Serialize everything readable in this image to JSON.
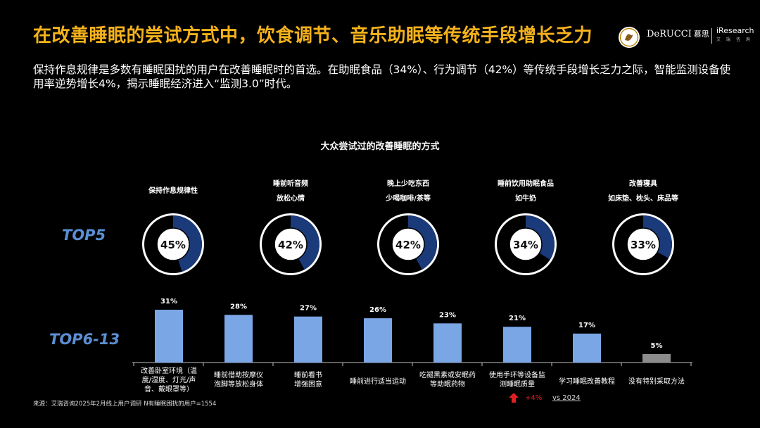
{
  "header": {
    "title": "在改善睡眠的尝试方式中，饮食调节、音乐助眠等传统手段增长乏力",
    "subtitle": "保持作息规律是多数有睡眠困扰的用户在改善睡眠时的首选。在助眠食品（34%）、行为调节（42%）等传统手段增长乏力之际，智能监测设备使用率逆势增长4%，揭示睡眠经济进入“监测3.0”时代。",
    "brand_derucci": "DeRUCCI",
    "brand_derucci_zh": "慕思",
    "brand_iresearch": "iResearch",
    "brand_iresearch_zh": "艾 瑞 咨 询"
  },
  "labels": {
    "top5": "TOP5",
    "top6_13": "TOP6-13"
  },
  "chart_data": [
    {
      "type": "pie",
      "title": "大众尝试过的改善睡眠的方式",
      "group": "TOP5",
      "items": [
        {
          "label_line1": "保持作息规律性",
          "label_line2": "",
          "value": 45,
          "display": "45%"
        },
        {
          "label_line1": "睡前听音频",
          "label_line2": "放松心情",
          "value": 42,
          "display": "42%"
        },
        {
          "label_line1": "晚上少吃东西",
          "label_line2": "少喝咖啡/茶等",
          "value": 42,
          "display": "42%"
        },
        {
          "label_line1": "睡前饮用助眠食品",
          "label_line2": "如牛奶",
          "value": 34,
          "display": "34%"
        },
        {
          "label_line1": "改善寝具",
          "label_line2": "如床垫、枕头、床品等",
          "value": 33,
          "display": "33%"
        }
      ],
      "colors": {
        "fill": "#1b3a7a",
        "ring": "#ffffff",
        "center": "#ffffff"
      }
    },
    {
      "type": "bar",
      "group": "TOP6-13",
      "categories": [
        [
          "改善卧室环境（温",
          "度/湿度、灯光/声",
          "音、戴眼罩等）"
        ],
        [
          "睡前借助按摩仪",
          "泡脚等放松身体"
        ],
        [
          "睡前看书",
          "增强困意"
        ],
        [
          "睡前进行适当运动"
        ],
        [
          "吃褪黑素或安眠药",
          "等助眠药物"
        ],
        [
          "使用手环等设备监",
          "测睡眠质量"
        ],
        [
          "学习睡眠改善教程"
        ],
        [
          "没有特别采取方法"
        ]
      ],
      "values": [
        31,
        28,
        27,
        26,
        23,
        21,
        17,
        5
      ],
      "display": [
        "31%",
        "28%",
        "27%",
        "26%",
        "23%",
        "21%",
        "17%",
        "5%"
      ],
      "bar_colors": [
        "#7ba6e6",
        "#7ba6e6",
        "#7ba6e6",
        "#7ba6e6",
        "#7ba6e6",
        "#7ba6e6",
        "#7ba6e6",
        "#8c8c8c"
      ],
      "annotation": {
        "value": "+4%",
        "compare": "vs 2024",
        "category_index": 5,
        "color": "#e02020"
      }
    }
  ],
  "footer": {
    "source": "来源：艾瑞咨询2025年2月线上用户调研 N有睡眠困扰的用户=1554"
  }
}
